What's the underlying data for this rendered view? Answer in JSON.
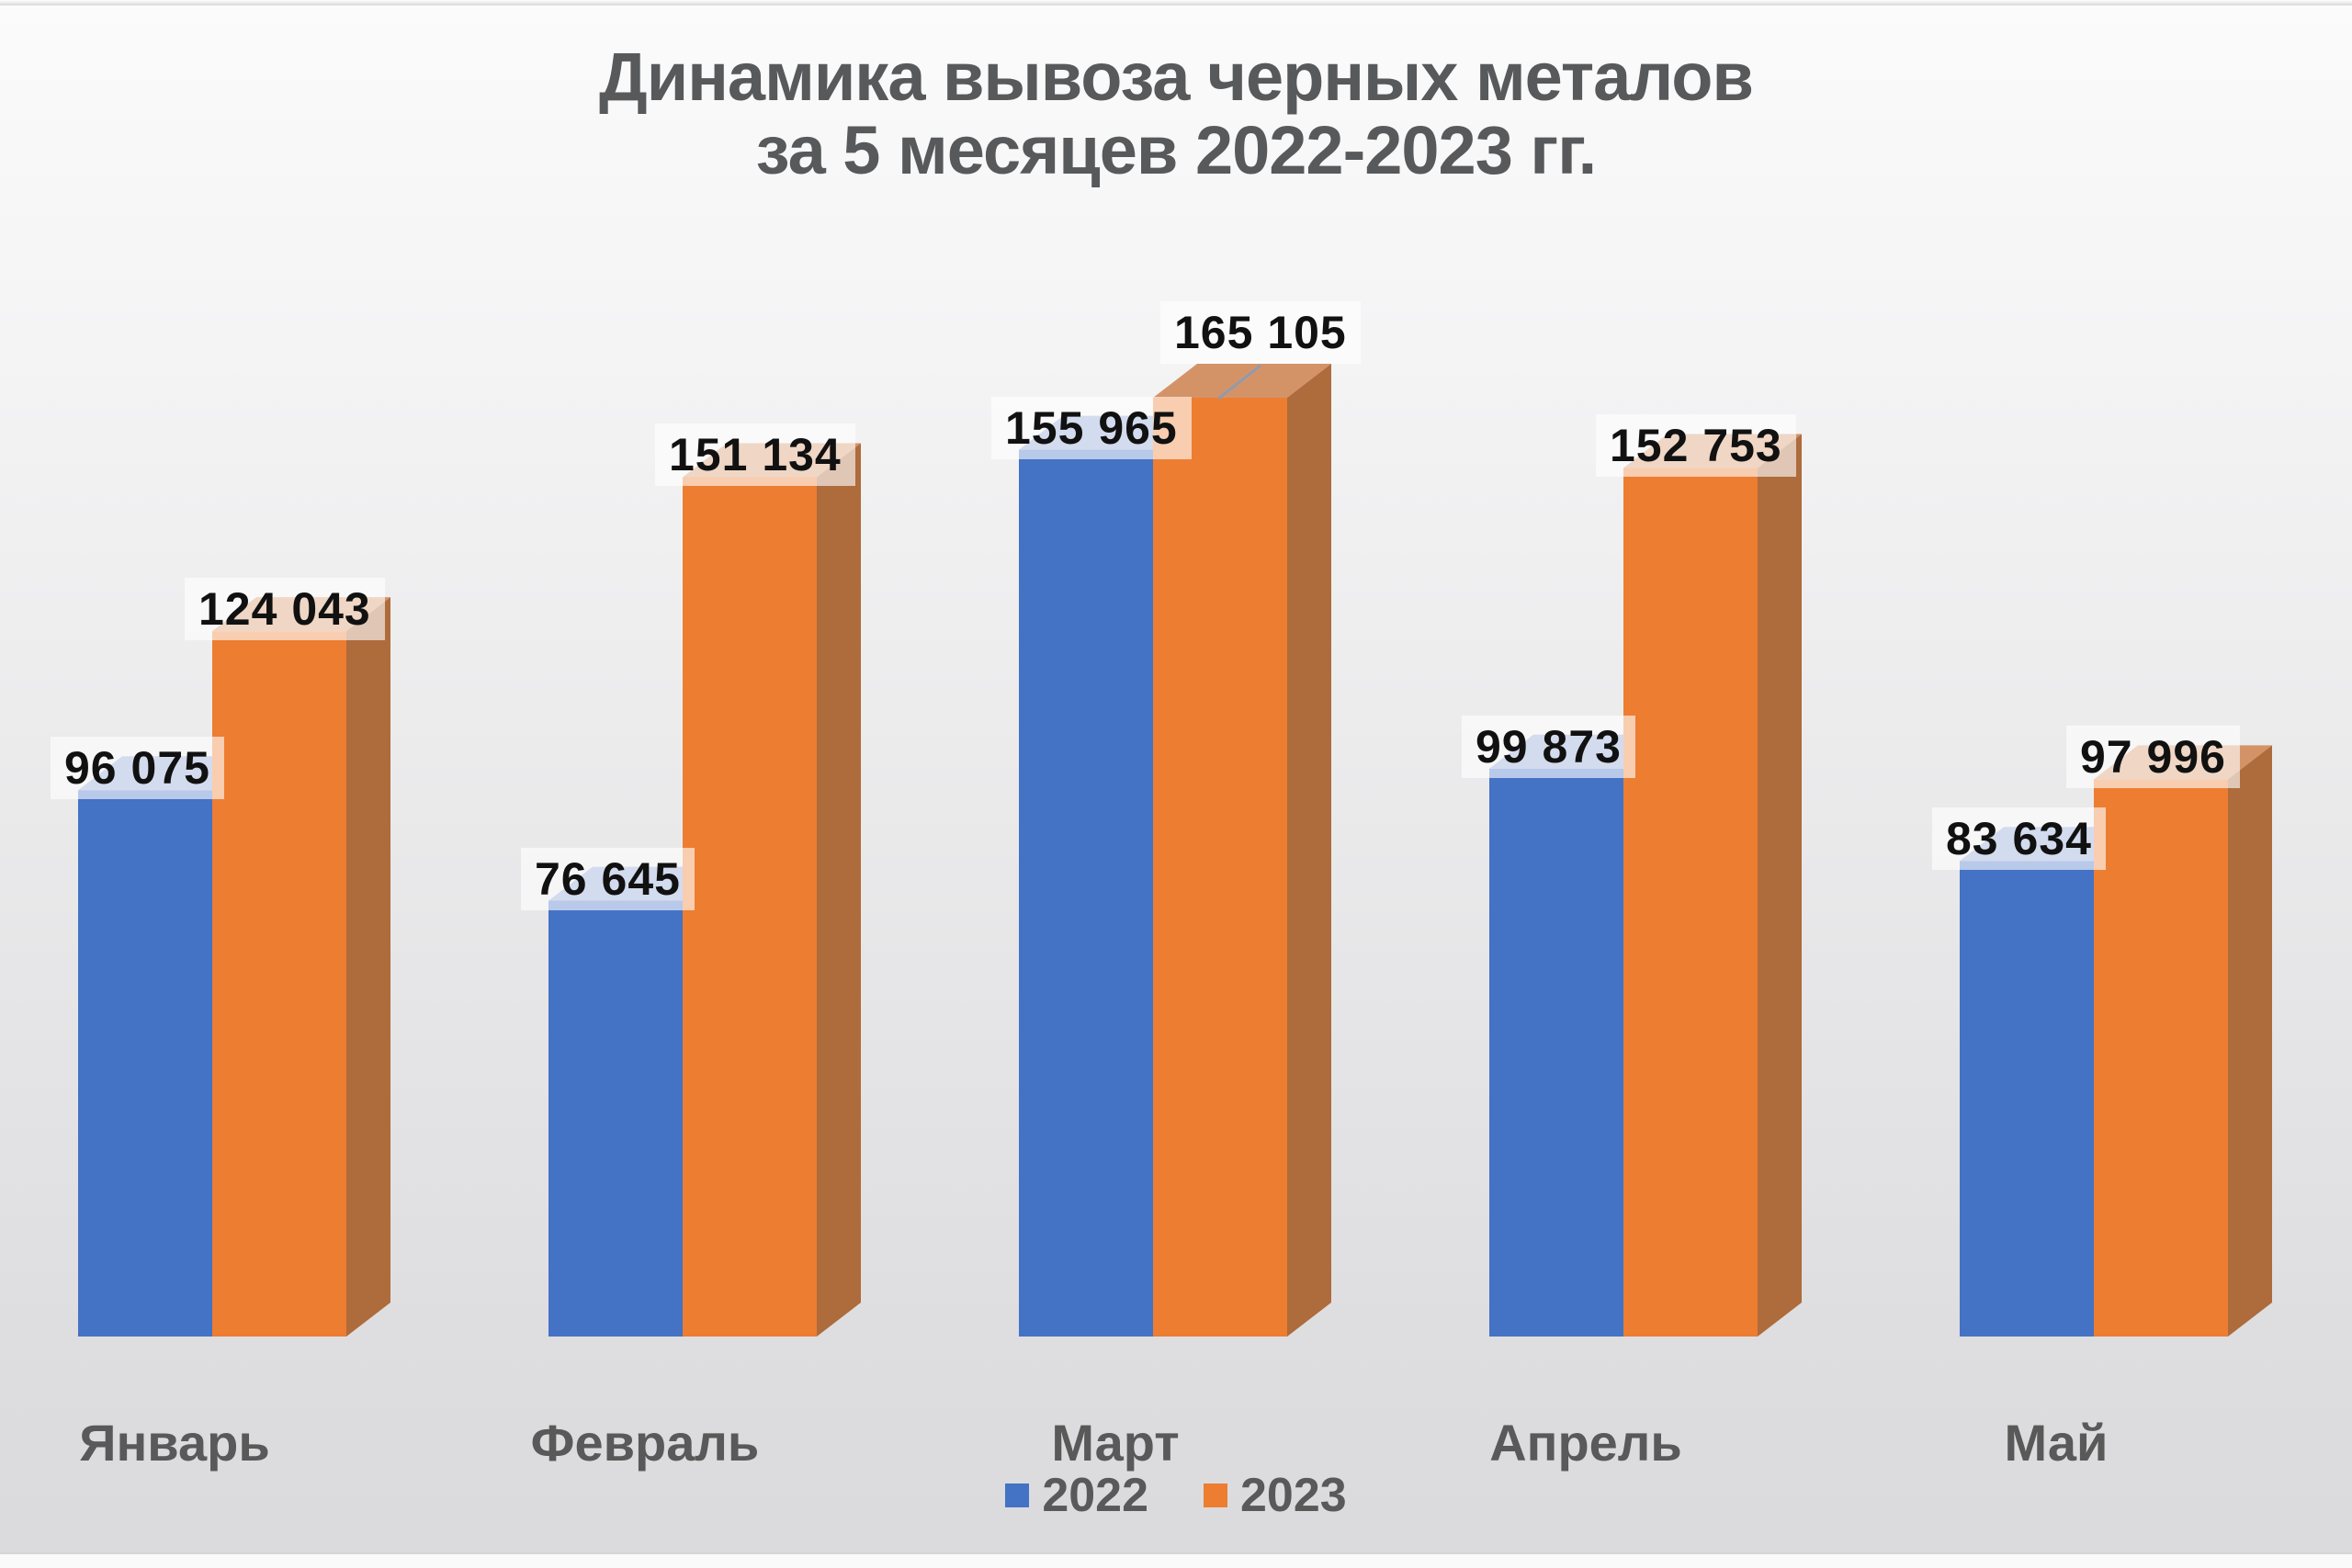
{
  "chart": {
    "title_line1": "Динамика вывоза черных металов",
    "title_line2": "за 5 месяцев 2022-2023 гг."
  },
  "chart_data": {
    "type": "bar",
    "variant": "3d-clustered-column",
    "title": "Динамика вывоза черных металов за 5 месяцев 2022-2023 гг.",
    "categories": [
      "Январь",
      "Февраль",
      "Март",
      "Апрель",
      "Май"
    ],
    "series": [
      {
        "name": "2022",
        "color": "#4472C4",
        "values": [
          96075,
          76645,
          155965,
          99873,
          83634
        ],
        "data_labels": [
          "96 075",
          "76 645",
          "155 965",
          "99 873",
          "83 634"
        ]
      },
      {
        "name": "2023",
        "color": "#ED7D31",
        "values": [
          124043,
          151134,
          165105,
          152753,
          97996
        ],
        "data_labels": [
          "124 043",
          "151 134",
          "165 105",
          "152 753",
          "97 996"
        ]
      }
    ],
    "ylim": [
      0,
      165105
    ],
    "gridlines": false,
    "value_axis_visible": false,
    "category_axis_visible": true,
    "legend_position": "bottom",
    "legend": [
      {
        "label": "2022",
        "color": "#4472C4"
      },
      {
        "label": "2023",
        "color": "#ED7D31"
      }
    ],
    "annotations": {
      "leader_line_on": "Март 2023"
    }
  },
  "style": {
    "colors": {
      "blue_front": "#4472C4",
      "blue_top": "#8BA1D3",
      "orange_front": "#ED7D31",
      "orange_top": "#D49367",
      "orange_side": "#AE6B3C",
      "title_text": "#58595B",
      "axis_text": "#595959",
      "data_label_text": "#111111",
      "data_label_bg": "rgba(255,255,255,0.62)",
      "leader_line": "#8C9BB3",
      "bg_top": "#FAFAFA",
      "bg_bottom": "#DCDCDE"
    }
  }
}
